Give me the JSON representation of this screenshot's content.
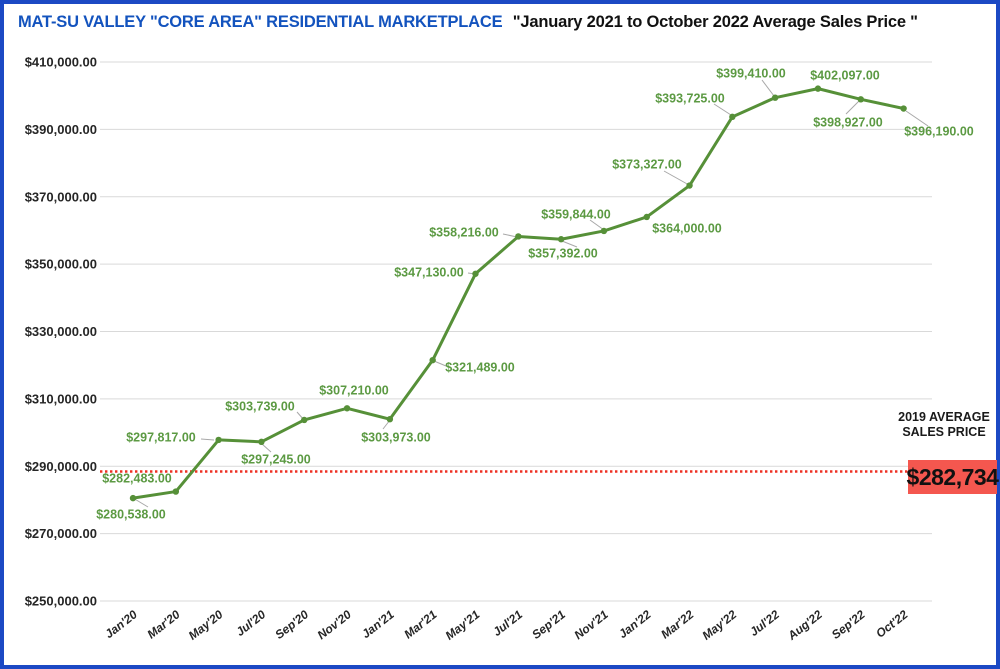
{
  "header": {
    "title": "MAT-SU VALLEY \"CORE AREA\" RESIDENTIAL MARKETPLACE",
    "subtitle": "\"January 2021 to October 2022 Average Sales Price \""
  },
  "chart_data": {
    "type": "line",
    "title": "MAT-SU VALLEY \"CORE AREA\" RESIDENTIAL MARKETPLACE \"January 2021 to October 2022 Average Sales Price \"",
    "categories": [
      "Jan'20",
      "Mar'20",
      "May'20",
      "Jul'20",
      "Sep'20",
      "Nov'20",
      "Jan'21",
      "Mar'21",
      "May'21",
      "Jul'21",
      "Sep'21",
      "Nov'21",
      "Jan'22",
      "Mar'22",
      "May'22",
      "Jul'22",
      "Aug'22",
      "Sep'22",
      "Oct'22"
    ],
    "series": [
      {
        "name": "Average Sales Price",
        "values": [
          280538,
          282483,
          297817,
          297245,
          303739,
          307210,
          303973,
          321489,
          347130,
          358216,
          357392,
          359844,
          364000,
          373327,
          393725,
          399410,
          402097,
          398927,
          396190
        ],
        "value_labels": [
          "$280,538.00",
          "$282,483.00",
          "$297,817.00",
          "$297,245.00",
          "$303,739.00",
          "$307,210.00",
          "$303,973.00",
          "$321,489.00",
          "$347,130.00",
          "$358,216.00",
          "$357,392.00",
          "$359,844.00",
          "$364,000.00",
          "$373,327.00",
          "$393,725.00",
          "$399,410.00",
          "$402,097.00",
          "$398,927.00",
          "$396,190.00"
        ]
      }
    ],
    "ylim": [
      250000,
      410000
    ],
    "ytick_values": [
      410000,
      390000,
      370000,
      350000,
      330000,
      310000,
      290000,
      270000,
      250000
    ],
    "ytick_labels": [
      "$410,000.00",
      "$390,000.00",
      "$370,000.00",
      "$350,000.00",
      "$330,000.00",
      "$310,000.00",
      "$290,000.00",
      "$270,000.00",
      "$250,000.00"
    ],
    "grid": "horizontal",
    "legend": "none",
    "line_color": "#569038",
    "label_color": "#5c9a43",
    "reference_line": {
      "title": "2019 AVERAGE SALES PRICE",
      "value_label": "$282,734",
      "value": 282734,
      "line_color": "#ee3124",
      "box_color": "#f4574f",
      "style": "dotted"
    }
  }
}
